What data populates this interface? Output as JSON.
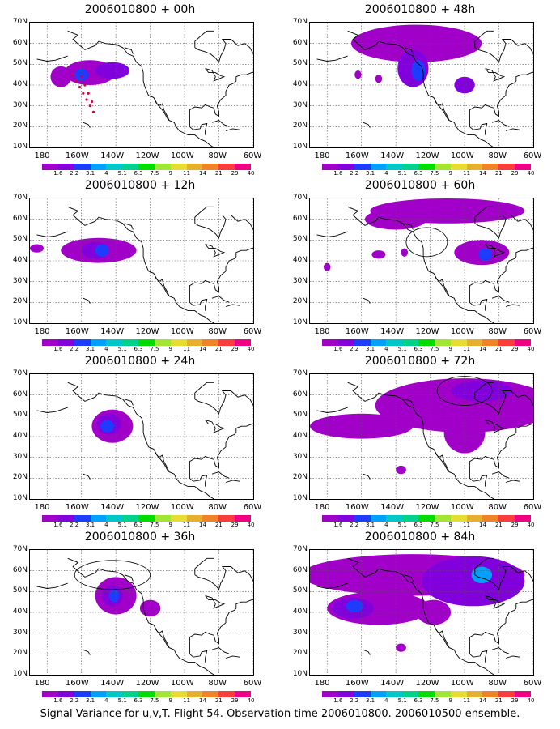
{
  "caption": "Signal Variance for u,v,T. Flight 54. Observation time 2006010800. 2006010500 ensemble.",
  "lat_labels": [
    "70N",
    "60N",
    "50N",
    "40N",
    "30N",
    "20N",
    "10N"
  ],
  "lon_labels": [
    "180",
    "160W",
    "140W",
    "120W",
    "100W",
    "80W",
    "60W"
  ],
  "colorbar": {
    "labels": [
      "1.6",
      "2.2",
      "3.1",
      "4",
      "5.1",
      "6.3",
      "7.5",
      "9",
      "11",
      "14",
      "21",
      "29",
      "40"
    ],
    "colors": [
      "#a000c8",
      "#8200dc",
      "#1e3cff",
      "#00a0ff",
      "#00c8c8",
      "#00d28c",
      "#00dc00",
      "#a0e632",
      "#e6dc32",
      "#e6af2d",
      "#f08228",
      "#fa3c3c",
      "#f00082"
    ]
  },
  "panels": [
    {
      "title": "2006010800 + 00h"
    },
    {
      "title": "2006010800 + 48h"
    },
    {
      "title": "2006010800 + 12h"
    },
    {
      "title": "2006010800 + 60h"
    },
    {
      "title": "2006010800 + 24h"
    },
    {
      "title": "2006010800 + 72h"
    },
    {
      "title": "2006010800 + 36h"
    },
    {
      "title": "2006010800 + 84h"
    }
  ]
}
